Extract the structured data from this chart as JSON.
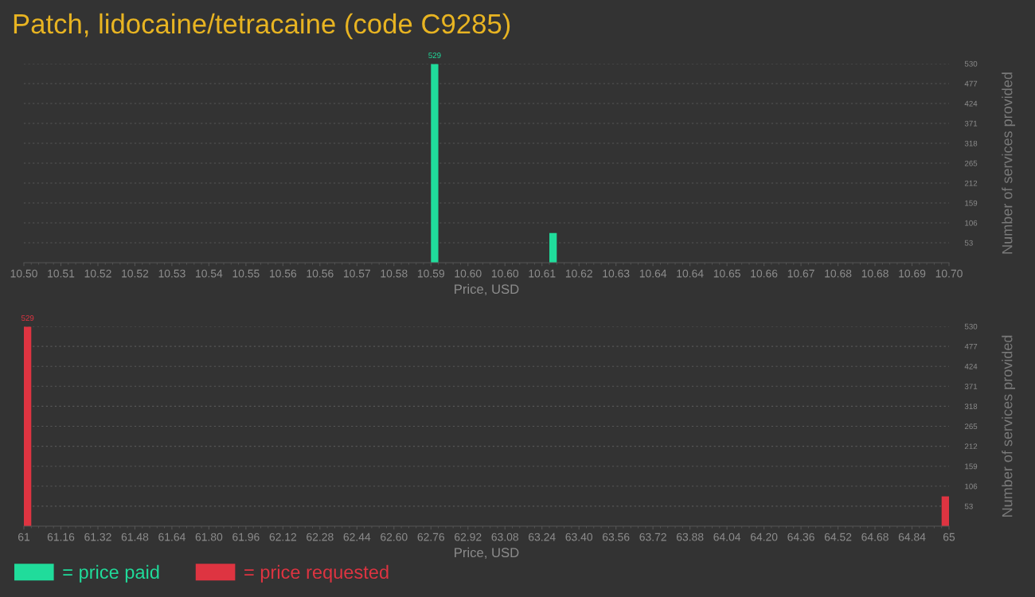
{
  "chart_data": [
    {
      "type": "histogram",
      "title": "Patch, lidocaine/tetracaine (code C9285)",
      "xlabel": "Price, USD",
      "ylabel": "Number of services provided",
      "bins": [
        10.588,
        10.5896,
        10.6136,
        10.6152
      ],
      "series": [
        {
          "name": "= price paid",
          "color": "#20dc9b",
          "values": [
            529,
            0,
            79
          ],
          "value_labels": [
            "529",
            null,
            null
          ]
        }
      ],
      "xlim": [
        10.5,
        10.7
      ],
      "xticks": [
        {
          "value": 10.5,
          "label": "10.50"
        },
        {
          "value": 10.508,
          "label": "10.51"
        },
        {
          "value": 10.516,
          "label": "10.52"
        },
        {
          "value": 10.524,
          "label": "10.52"
        },
        {
          "value": 10.532,
          "label": "10.53"
        },
        {
          "value": 10.54,
          "label": "10.54"
        },
        {
          "value": 10.548,
          "label": "10.55"
        },
        {
          "value": 10.556,
          "label": "10.56"
        },
        {
          "value": 10.564,
          "label": "10.56"
        },
        {
          "value": 10.572,
          "label": "10.57"
        },
        {
          "value": 10.58,
          "label": "10.58"
        },
        {
          "value": 10.588,
          "label": "10.59"
        },
        {
          "value": 10.596,
          "label": "10.60"
        },
        {
          "value": 10.604,
          "label": "10.60"
        },
        {
          "value": 10.612,
          "label": "10.61"
        },
        {
          "value": 10.62,
          "label": "10.62"
        },
        {
          "value": 10.628,
          "label": "10.63"
        },
        {
          "value": 10.636,
          "label": "10.64"
        },
        {
          "value": 10.644,
          "label": "10.64"
        },
        {
          "value": 10.652,
          "label": "10.65"
        },
        {
          "value": 10.66,
          "label": "10.66"
        },
        {
          "value": 10.668,
          "label": "10.67"
        },
        {
          "value": 10.676,
          "label": "10.68"
        },
        {
          "value": 10.684,
          "label": "10.68"
        },
        {
          "value": 10.692,
          "label": "10.69"
        },
        {
          "value": 10.7,
          "label": "10.70"
        },
        {
          "value": 10.5016,
          "label": null
        },
        {
          "value": 10.5032,
          "label": null
        },
        {
          "value": 10.5048,
          "label": null
        },
        {
          "value": 10.5064,
          "label": null
        },
        {
          "value": 10.5096,
          "label": null
        },
        {
          "value": 10.5112,
          "label": null
        },
        {
          "value": 10.5128,
          "label": null
        },
        {
          "value": 10.5144,
          "label": null
        },
        {
          "value": 10.5176,
          "label": null
        },
        {
          "value": 10.5192,
          "label": null
        },
        {
          "value": 10.5208,
          "label": null
        },
        {
          "value": 10.5224,
          "label": null
        },
        {
          "value": 10.5256,
          "label": null
        },
        {
          "value": 10.5272,
          "label": null
        },
        {
          "value": 10.5288,
          "label": null
        },
        {
          "value": 10.5304,
          "label": null
        },
        {
          "value": 10.5336,
          "label": null
        },
        {
          "value": 10.5352,
          "label": null
        },
        {
          "value": 10.5368,
          "label": null
        },
        {
          "value": 10.5384,
          "label": null
        },
        {
          "value": 10.5416,
          "label": null
        },
        {
          "value": 10.5432,
          "label": null
        },
        {
          "value": 10.5448,
          "label": null
        },
        {
          "value": 10.5464,
          "label": null
        },
        {
          "value": 10.5496,
          "label": null
        },
        {
          "value": 10.5512,
          "label": null
        },
        {
          "value": 10.5528,
          "label": null
        },
        {
          "value": 10.5544,
          "label": null
        },
        {
          "value": 10.5576,
          "label": null
        },
        {
          "value": 10.5592,
          "label": null
        },
        {
          "value": 10.5608,
          "label": null
        },
        {
          "value": 10.5624,
          "label": null
        },
        {
          "value": 10.5656,
          "label": null
        },
        {
          "value": 10.5672,
          "label": null
        },
        {
          "value": 10.5688,
          "label": null
        },
        {
          "value": 10.5704,
          "label": null
        },
        {
          "value": 10.5736,
          "label": null
        },
        {
          "value": 10.5752,
          "label": null
        },
        {
          "value": 10.5768,
          "label": null
        },
        {
          "value": 10.5784,
          "label": null
        },
        {
          "value": 10.5816,
          "label": null
        },
        {
          "value": 10.5832,
          "label": null
        },
        {
          "value": 10.5848,
          "label": null
        },
        {
          "value": 10.5864,
          "label": null
        },
        {
          "value": 10.5896,
          "label": null
        },
        {
          "value": 10.5912,
          "label": null
        },
        {
          "value": 10.5928,
          "label": null
        },
        {
          "value": 10.5944,
          "label": null
        },
        {
          "value": 10.5976,
          "label": null
        },
        {
          "value": 10.5992,
          "label": null
        },
        {
          "value": 10.6008,
          "label": null
        },
        {
          "value": 10.6024,
          "label": null
        },
        {
          "value": 10.6056,
          "label": null
        },
        {
          "value": 10.6072,
          "label": null
        },
        {
          "value": 10.6088,
          "label": null
        },
        {
          "value": 10.6104,
          "label": null
        },
        {
          "value": 10.6136,
          "label": null
        },
        {
          "value": 10.6152,
          "label": null
        },
        {
          "value": 10.6168,
          "label": null
        },
        {
          "value": 10.6184,
          "label": null
        },
        {
          "value": 10.6216,
          "label": null
        },
        {
          "value": 10.6232,
          "label": null
        },
        {
          "value": 10.6248,
          "label": null
        },
        {
          "value": 10.6264,
          "label": null
        },
        {
          "value": 10.6296,
          "label": null
        },
        {
          "value": 10.6312,
          "label": null
        },
        {
          "value": 10.6328,
          "label": null
        },
        {
          "value": 10.6344,
          "label": null
        },
        {
          "value": 10.6376,
          "label": null
        },
        {
          "value": 10.6392,
          "label": null
        },
        {
          "value": 10.6408,
          "label": null
        },
        {
          "value": 10.6424,
          "label": null
        },
        {
          "value": 10.6456,
          "label": null
        },
        {
          "value": 10.6472,
          "label": null
        },
        {
          "value": 10.6488,
          "label": null
        },
        {
          "value": 10.6504,
          "label": null
        },
        {
          "value": 10.6536,
          "label": null
        },
        {
          "value": 10.6552,
          "label": null
        },
        {
          "value": 10.6568,
          "label": null
        },
        {
          "value": 10.6584,
          "label": null
        },
        {
          "value": 10.6616,
          "label": null
        },
        {
          "value": 10.6632,
          "label": null
        },
        {
          "value": 10.6648,
          "label": null
        },
        {
          "value": 10.6664,
          "label": null
        },
        {
          "value": 10.6696,
          "label": null
        },
        {
          "value": 10.6712,
          "label": null
        },
        {
          "value": 10.6728,
          "label": null
        },
        {
          "value": 10.6744,
          "label": null
        },
        {
          "value": 10.6776,
          "label": null
        },
        {
          "value": 10.6792,
          "label": null
        },
        {
          "value": 10.6808,
          "label": null
        },
        {
          "value": 10.6824,
          "label": null
        },
        {
          "value": 10.6856,
          "label": null
        },
        {
          "value": 10.6872,
          "label": null
        },
        {
          "value": 10.6888,
          "label": null
        },
        {
          "value": 10.6904,
          "label": null
        },
        {
          "value": 10.6936,
          "label": null
        },
        {
          "value": 10.6952,
          "label": null
        },
        {
          "value": 10.6968,
          "label": null
        },
        {
          "value": 10.6984,
          "label": null
        }
      ],
      "ylim": [
        0,
        530
      ],
      "yticks": [
        53,
        106,
        159,
        212,
        265,
        318,
        371,
        424,
        477,
        530
      ],
      "grid": "y",
      "legend": "bottom left"
    },
    {
      "type": "histogram",
      "xlabel": "Price, USD",
      "ylabel": "Number of services provided",
      "bins": [
        61,
        61.032,
        64.968,
        65
      ],
      "series": [
        {
          "name": "= price requested",
          "color": "#de3441",
          "values": [
            529,
            0,
            79
          ],
          "value_labels": [
            "529",
            null,
            null
          ]
        }
      ],
      "xlim": [
        61,
        65
      ],
      "xticks": [
        61,
        61.16,
        61.32,
        61.48,
        61.64,
        {
          "value": 61.8,
          "label": "61.80"
        },
        61.96,
        62.12,
        62.28,
        62.44,
        {
          "value": 62.6,
          "label": "62.60"
        },
        62.76,
        62.92,
        63.08,
        63.24,
        {
          "value": 63.4,
          "label": "63.40"
        },
        63.56,
        63.72,
        63.88,
        64.04,
        {
          "value": 64.2,
          "label": "64.20"
        },
        64.36,
        64.52,
        64.68,
        64.84,
        65,
        {
          "value": 61.032,
          "label": null
        },
        {
          "value": 61.064,
          "label": null
        },
        {
          "value": 61.096,
          "label": null
        },
        {
          "value": 61.128,
          "label": null
        },
        {
          "value": 61.192,
          "label": null
        },
        {
          "value": 61.224,
          "label": null
        },
        {
          "value": 61.256,
          "label": null
        },
        {
          "value": 61.288,
          "label": null
        },
        {
          "value": 61.352,
          "label": null
        },
        {
          "value": 61.384,
          "label": null
        },
        {
          "value": 61.416,
          "label": null
        },
        {
          "value": 61.448,
          "label": null
        },
        {
          "value": 61.512,
          "label": null
        },
        {
          "value": 61.544,
          "label": null
        },
        {
          "value": 61.576,
          "label": null
        },
        {
          "value": 61.608,
          "label": null
        },
        {
          "value": 61.672,
          "label": null
        },
        {
          "value": 61.704,
          "label": null
        },
        {
          "value": 61.736,
          "label": null
        },
        {
          "value": 61.768,
          "label": null
        },
        {
          "value": 61.832,
          "label": null
        },
        {
          "value": 61.864,
          "label": null
        },
        {
          "value": 61.896,
          "label": null
        },
        {
          "value": 61.928,
          "label": null
        },
        {
          "value": 61.992,
          "label": null
        },
        {
          "value": 62.024,
          "label": null
        },
        {
          "value": 62.056,
          "label": null
        },
        {
          "value": 62.088,
          "label": null
        },
        {
          "value": 62.152,
          "label": null
        },
        {
          "value": 62.184,
          "label": null
        },
        {
          "value": 62.216,
          "label": null
        },
        {
          "value": 62.248,
          "label": null
        },
        {
          "value": 62.312,
          "label": null
        },
        {
          "value": 62.344,
          "label": null
        },
        {
          "value": 62.376,
          "label": null
        },
        {
          "value": 62.408,
          "label": null
        },
        {
          "value": 62.472,
          "label": null
        },
        {
          "value": 62.504,
          "label": null
        },
        {
          "value": 62.536,
          "label": null
        },
        {
          "value": 62.568,
          "label": null
        },
        {
          "value": 62.632,
          "label": null
        },
        {
          "value": 62.664,
          "label": null
        },
        {
          "value": 62.696,
          "label": null
        },
        {
          "value": 62.728,
          "label": null
        },
        {
          "value": 62.792,
          "label": null
        },
        {
          "value": 62.824,
          "label": null
        },
        {
          "value": 62.856,
          "label": null
        },
        {
          "value": 62.888,
          "label": null
        },
        {
          "value": 62.952,
          "label": null
        },
        {
          "value": 62.984,
          "label": null
        },
        {
          "value": 63.016,
          "label": null
        },
        {
          "value": 63.048,
          "label": null
        },
        {
          "value": 63.112,
          "label": null
        },
        {
          "value": 63.144,
          "label": null
        },
        {
          "value": 63.176,
          "label": null
        },
        {
          "value": 63.208,
          "label": null
        },
        {
          "value": 63.272,
          "label": null
        },
        {
          "value": 63.304,
          "label": null
        },
        {
          "value": 63.336,
          "label": null
        },
        {
          "value": 63.368,
          "label": null
        },
        {
          "value": 63.432,
          "label": null
        },
        {
          "value": 63.464,
          "label": null
        },
        {
          "value": 63.496,
          "label": null
        },
        {
          "value": 63.528,
          "label": null
        },
        {
          "value": 63.592,
          "label": null
        },
        {
          "value": 63.624,
          "label": null
        },
        {
          "value": 63.656,
          "label": null
        },
        {
          "value": 63.688,
          "label": null
        },
        {
          "value": 63.752,
          "label": null
        },
        {
          "value": 63.784,
          "label": null
        },
        {
          "value": 63.816,
          "label": null
        },
        {
          "value": 63.848,
          "label": null
        },
        {
          "value": 63.912,
          "label": null
        },
        {
          "value": 63.944,
          "label": null
        },
        {
          "value": 63.976,
          "label": null
        },
        {
          "value": 64.008,
          "label": null
        },
        {
          "value": 64.072,
          "label": null
        },
        {
          "value": 64.104,
          "label": null
        },
        {
          "value": 64.136,
          "label": null
        },
        {
          "value": 64.168,
          "label": null
        },
        {
          "value": 64.232,
          "label": null
        },
        {
          "value": 64.264,
          "label": null
        },
        {
          "value": 64.296,
          "label": null
        },
        {
          "value": 64.328,
          "label": null
        },
        {
          "value": 64.392,
          "label": null
        },
        {
          "value": 64.424,
          "label": null
        },
        {
          "value": 64.456,
          "label": null
        },
        {
          "value": 64.488,
          "label": null
        },
        {
          "value": 64.552,
          "label": null
        },
        {
          "value": 64.584,
          "label": null
        },
        {
          "value": 64.616,
          "label": null
        },
        {
          "value": 64.648,
          "label": null
        },
        {
          "value": 64.712,
          "label": null
        },
        {
          "value": 64.744,
          "label": null
        },
        {
          "value": 64.776,
          "label": null
        },
        {
          "value": 64.808,
          "label": null
        },
        {
          "value": 64.872,
          "label": null
        },
        {
          "value": 64.904,
          "label": null
        },
        {
          "value": 64.936,
          "label": null
        },
        {
          "value": 64.968,
          "label": null
        }
      ],
      "ylim": [
        0,
        530
      ],
      "yticks": [
        53,
        106,
        159,
        212,
        265,
        318,
        371,
        424,
        477,
        530
      ],
      "grid": "y",
      "legend": "bottom left"
    }
  ]
}
